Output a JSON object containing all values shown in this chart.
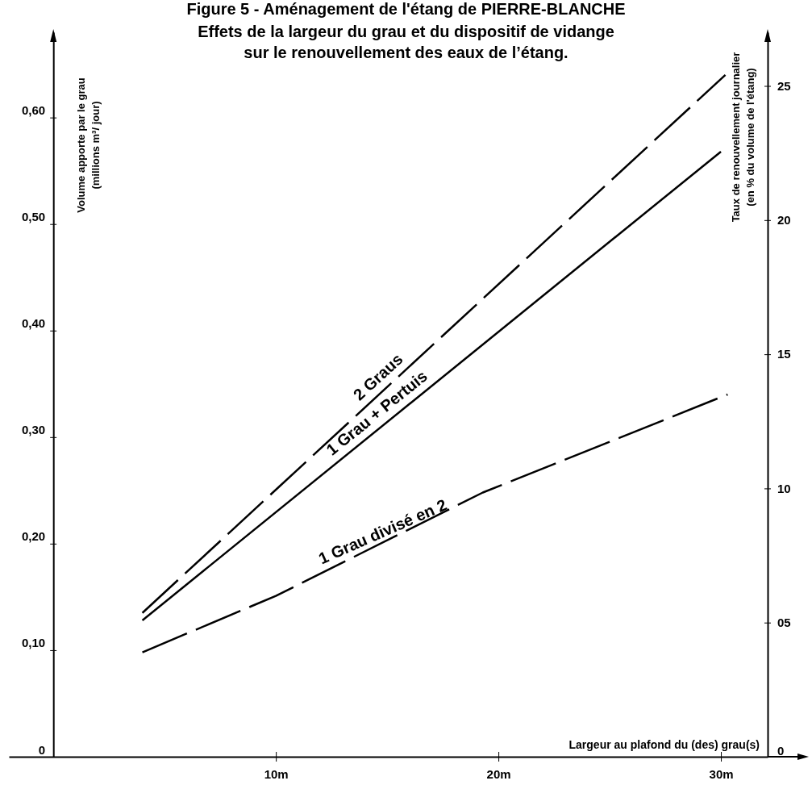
{
  "chart_data": {
    "type": "line",
    "title": "Figure 5 - Aménagement de l'étang de PIERRE-BLANCHE",
    "subtitle": "Effets de la largeur du grau et du dispositif de vidange sur le renouvellement des eaux de l’étang.",
    "xlabel": "Largeur au plafond du (des) grau(s)",
    "ylabel": "Volume apporte par le grau (millions m³/ jour)",
    "y2label": "Taux de renouvellement journalier (en % du volume de l'étang)",
    "xlim": [
      -2,
      32.1
    ],
    "xticks": [
      {
        "value": 10,
        "label": "10m"
      },
      {
        "value": 20,
        "label": "20m"
      },
      {
        "value": 30,
        "label": "30m"
      }
    ],
    "ylim": [
      0,
      0.68
    ],
    "yticks": [
      0,
      {
        "value": 0.1,
        "label": "0,10"
      },
      {
        "value": 0.2,
        "label": "0,20"
      },
      {
        "value": 0.3,
        "label": "0,30"
      },
      {
        "value": 0.4,
        "label": "0,40"
      },
      {
        "value": 0.5,
        "label": "0,50"
      },
      {
        "value": 0.6,
        "label": "0,60"
      }
    ],
    "y2lim": [
      0,
      27
    ],
    "y2ticks": [
      0,
      {
        "value": 5,
        "label": "05"
      },
      10,
      15,
      20,
      25
    ],
    "marker": "none",
    "series": [
      {
        "name": "2 Graus",
        "color": "#000000",
        "line_style": "dashed",
        "x": [
          4,
          30.2
        ],
        "values": [
          0.135,
          0.64
        ]
      },
      {
        "name": "1 Grau + Pertuis",
        "color": "#000000",
        "line_style": "solid",
        "x": [
          4,
          30
        ],
        "values": [
          0.128,
          0.568
        ]
      },
      {
        "name": "1 Grau divisé en 2",
        "color": "#000000",
        "line_style": "dashed",
        "x": [
          4,
          10,
          19.3,
          30.3
        ],
        "values": [
          0.098,
          0.151,
          0.248,
          0.34
        ]
      }
    ]
  }
}
